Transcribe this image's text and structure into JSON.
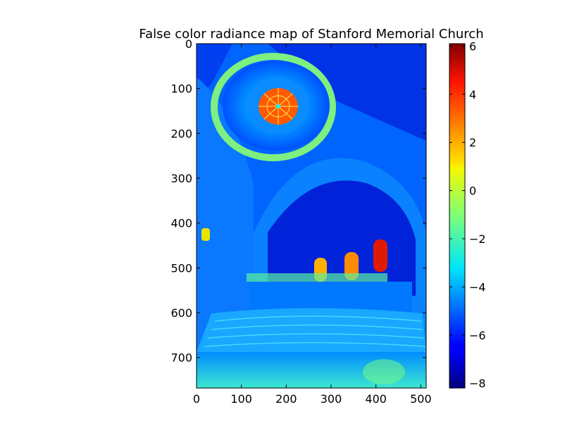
{
  "chart_data": {
    "type": "heatmap",
    "title": "False color radiance map of Stanford Memorial Church",
    "xlabel": "",
    "ylabel": "",
    "image_width": 512,
    "image_height": 768,
    "xlim": [
      0,
      512
    ],
    "ylim": [
      768,
      0
    ],
    "x_ticks": [
      0,
      100,
      200,
      300,
      400,
      500
    ],
    "y_ticks": [
      0,
      100,
      200,
      300,
      400,
      500,
      600,
      700
    ],
    "colormap": "jet",
    "colorbar": {
      "vmin": -8.2,
      "vmax": 6.1,
      "ticks": [
        -8,
        -6,
        -4,
        -2,
        0,
        2,
        4,
        6
      ]
    },
    "grid": false,
    "legend": "none"
  }
}
